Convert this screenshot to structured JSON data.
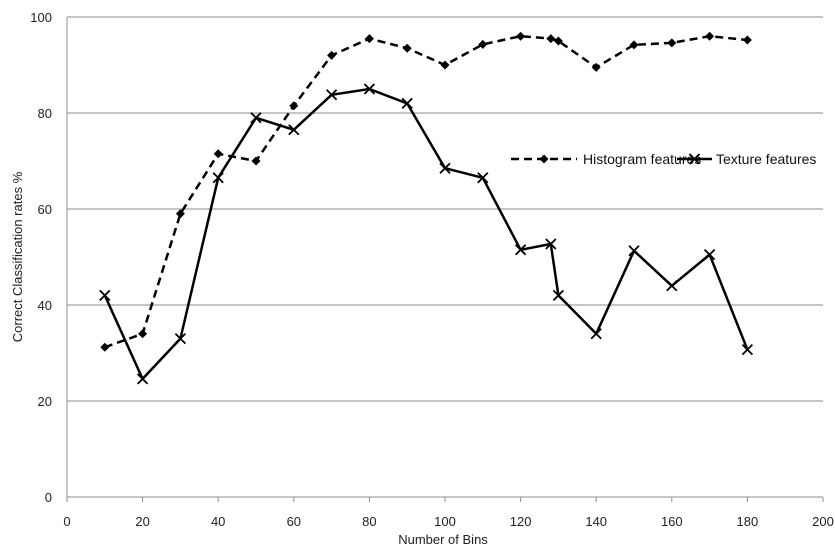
{
  "chart_data": {
    "type": "line",
    "title": "",
    "xlabel": "Number of Bins",
    "ylabel": "Correct Classification rates %",
    "xlim": [
      0,
      200
    ],
    "ylim": [
      0,
      100
    ],
    "xticks": [
      0,
      20,
      40,
      60,
      80,
      100,
      120,
      140,
      160,
      180,
      200
    ],
    "yticks": [
      0,
      20,
      40,
      60,
      80,
      100
    ],
    "grid": "horizontal",
    "legend_position": "right",
    "series": [
      {
        "name": "Histogram features",
        "style": "dashed",
        "marker": "diamond",
        "color": "#000000",
        "x": [
          10,
          20,
          30,
          40,
          50,
          60,
          70,
          80,
          90,
          100,
          110,
          120,
          128,
          130,
          140,
          150,
          160,
          170,
          180
        ],
        "y": [
          31.2,
          34,
          59,
          71.5,
          70,
          81.5,
          92,
          95.5,
          93.5,
          90,
          94.3,
          96,
          95.5,
          95,
          89.5,
          94.2,
          94.6,
          96,
          95.2
        ]
      },
      {
        "name": "Texture features",
        "style": "solid",
        "marker": "x",
        "color": "#000000",
        "x": [
          10,
          20,
          30,
          40,
          50,
          60,
          70,
          80,
          90,
          100,
          110,
          120,
          128,
          130,
          140,
          150,
          160,
          170,
          180
        ],
        "y": [
          42,
          24.6,
          33,
          66.5,
          79,
          76.5,
          83.8,
          85,
          82,
          68.5,
          66.5,
          51.5,
          52.7,
          42,
          34,
          51.3,
          44,
          50.5,
          30.7
        ]
      }
    ]
  }
}
